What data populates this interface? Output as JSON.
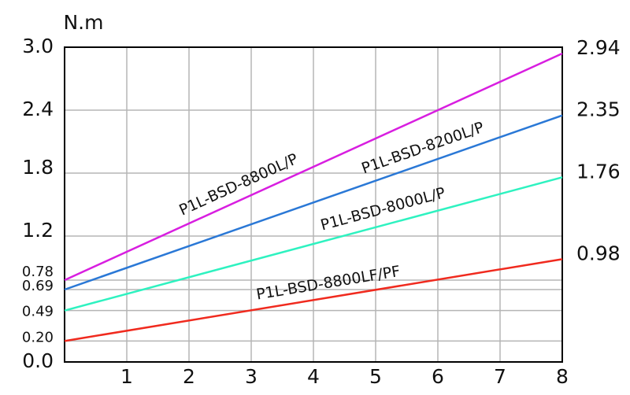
{
  "chart_data": {
    "type": "line",
    "unit_label": "N.m",
    "xlim": [
      0,
      8
    ],
    "xticks": [
      1,
      2,
      3,
      4,
      5,
      6,
      7,
      8
    ],
    "ylim": [
      0,
      3.0
    ],
    "yticks": [
      {
        "value": 0,
        "label": "0.0"
      },
      {
        "value": 0.2,
        "label": "0.20"
      },
      0.49,
      0.69,
      0.78,
      1.2,
      1.8,
      2.4,
      {
        "value": 3.0,
        "label": "3.0"
      }
    ],
    "y2lim": [
      0,
      3.0
    ],
    "y2ticks": [
      0.98,
      1.76,
      2.35,
      2.94
    ],
    "grid": true,
    "x": [
      0,
      8
    ],
    "series": [
      {
        "name": "P1L-BSD-8800L/P",
        "color": "#d81ee0",
        "values": [
          0.78,
          2.94
        ]
      },
      {
        "name": "P1L-BSD-8200L/P",
        "color": "#2a78d6",
        "values": [
          0.69,
          2.35
        ]
      },
      {
        "name": "P1L-BSD-8000L/P",
        "color": "#2ef2c0",
        "values": [
          0.49,
          1.76
        ]
      },
      {
        "name": "P1L-BSD-8800LF/PF",
        "color": "#f02a1e",
        "values": [
          0.2,
          0.98
        ]
      }
    ]
  }
}
